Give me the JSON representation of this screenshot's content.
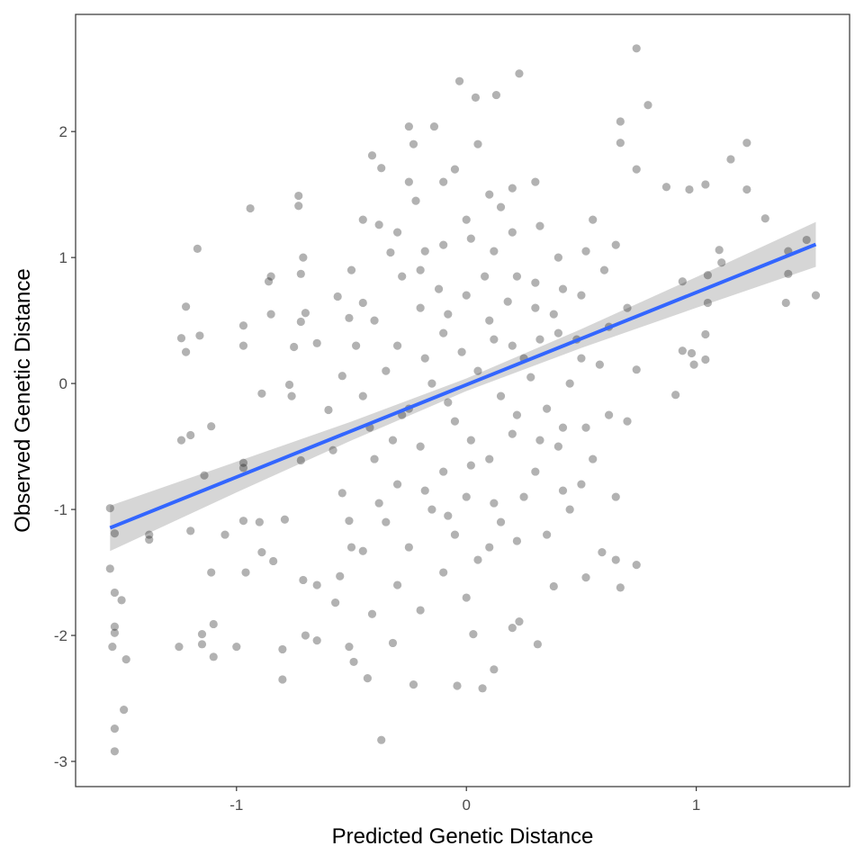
{
  "chart_data": {
    "type": "scatter",
    "title": "",
    "xlabel": "Predicted Genetic Distance",
    "ylabel": "Observed Genetic Distance",
    "xlim": [
      -1.7,
      1.667
    ],
    "ylim": [
      -3.2,
      2.93
    ],
    "x_ticks": [
      -1,
      0,
      1
    ],
    "y_ticks": [
      -3,
      -2,
      -1,
      0,
      1,
      2
    ],
    "x_tick_labels": [
      "-1",
      "0",
      "1"
    ],
    "y_tick_labels": [
      "-3",
      "-2",
      "-1",
      "0",
      "1",
      "2"
    ],
    "grid": false,
    "theme": "bw panel border, no gridlines",
    "point_color": "#000000",
    "point_opacity": 0.3,
    "points": [
      [
        -1.55,
        -0.99
      ],
      [
        -1.53,
        -1.19
      ],
      [
        -1.55,
        -1.47
      ],
      [
        -1.53,
        -1.66
      ],
      [
        -1.5,
        -1.72
      ],
      [
        -1.53,
        -1.93
      ],
      [
        -1.53,
        -1.98
      ],
      [
        -1.54,
        -2.09
      ],
      [
        -1.48,
        -2.19
      ],
      [
        -1.49,
        -2.59
      ],
      [
        -1.53,
        -2.74
      ],
      [
        -1.53,
        -2.92
      ],
      [
        -1.38,
        -1.2
      ],
      [
        -1.38,
        -1.24
      ],
      [
        -1.25,
        -2.09
      ],
      [
        -1.24,
        -0.45
      ],
      [
        -1.2,
        -0.41
      ],
      [
        -1.24,
        0.36
      ],
      [
        -1.22,
        0.25
      ],
      [
        -1.22,
        0.61
      ],
      [
        -1.17,
        1.07
      ],
      [
        -1.16,
        0.38
      ],
      [
        -1.15,
        -1.99
      ],
      [
        -1.15,
        -2.07
      ],
      [
        -1.14,
        -0.73
      ],
      [
        -1.11,
        -0.34
      ],
      [
        -1.11,
        -1.5
      ],
      [
        -1.1,
        -1.91
      ],
      [
        -1.1,
        -2.17
      ],
      [
        -1.2,
        -1.17
      ],
      [
        -1.05,
        -1.2
      ],
      [
        -1.0,
        -2.09
      ],
      [
        -0.97,
        0.46
      ],
      [
        -0.97,
        0.3
      ],
      [
        -0.94,
        1.39
      ],
      [
        -0.97,
        -0.63
      ],
      [
        -0.97,
        -0.67
      ],
      [
        -0.96,
        -1.5
      ],
      [
        -0.97,
        -1.09
      ],
      [
        -0.89,
        -0.08
      ],
      [
        -0.86,
        0.81
      ],
      [
        -0.85,
        0.85
      ],
      [
        -0.85,
        0.55
      ],
      [
        -0.9,
        -1.1
      ],
      [
        -0.89,
        -1.34
      ],
      [
        -0.84,
        -1.41
      ],
      [
        -0.8,
        -2.11
      ],
      [
        -0.8,
        -2.35
      ],
      [
        -0.79,
        -1.08
      ],
      [
        -0.73,
        1.49
      ],
      [
        -0.73,
        1.41
      ],
      [
        -0.71,
        1.0
      ],
      [
        -0.72,
        0.87
      ],
      [
        -0.7,
        0.56
      ],
      [
        -0.72,
        0.49
      ],
      [
        -0.75,
        0.29
      ],
      [
        -0.65,
        0.32
      ],
      [
        -0.77,
        -0.01
      ],
      [
        -0.76,
        -0.1
      ],
      [
        -0.72,
        -0.61
      ],
      [
        -0.7,
        -2.0
      ],
      [
        -0.65,
        -2.04
      ],
      [
        -0.71,
        -1.56
      ],
      [
        -0.65,
        -1.6
      ],
      [
        -0.57,
        -1.74
      ],
      [
        -0.51,
        -2.09
      ],
      [
        -0.49,
        -2.21
      ],
      [
        -0.43,
        -2.34
      ],
      [
        -0.37,
        -2.83
      ],
      [
        -0.41,
        1.81
      ],
      [
        -0.37,
        1.71
      ],
      [
        -0.38,
        1.26
      ],
      [
        -0.33,
        1.04
      ],
      [
        -0.45,
        0.64
      ],
      [
        -0.51,
        0.52
      ],
      [
        -0.56,
        0.69
      ],
      [
        -0.54,
        0.06
      ],
      [
        -0.6,
        -0.21
      ],
      [
        -0.58,
        -0.53
      ],
      [
        -0.54,
        -0.87
      ],
      [
        -0.51,
        -1.09
      ],
      [
        -0.55,
        -1.53
      ],
      [
        -0.45,
        -1.33
      ],
      [
        -0.41,
        -1.83
      ],
      [
        -0.32,
        -2.06
      ],
      [
        -0.25,
        2.04
      ],
      [
        -0.23,
        1.9
      ],
      [
        -0.14,
        2.04
      ],
      [
        -0.03,
        2.4
      ],
      [
        0.04,
        2.27
      ],
      [
        0.13,
        2.29
      ],
      [
        0.23,
        2.46
      ],
      [
        0.74,
        2.66
      ],
      [
        0.79,
        2.21
      ],
      [
        0.67,
        2.08
      ],
      [
        0.67,
        1.91
      ],
      [
        0.74,
        1.7
      ],
      [
        0.87,
        1.56
      ],
      [
        0.97,
        1.54
      ],
      [
        1.04,
        1.58
      ],
      [
        1.22,
        1.91
      ],
      [
        1.15,
        1.78
      ],
      [
        1.22,
        1.54
      ],
      [
        1.3,
        1.31
      ],
      [
        1.4,
        1.05
      ],
      [
        1.4,
        0.87
      ],
      [
        1.48,
        1.14
      ],
      [
        1.52,
        0.7
      ],
      [
        1.39,
        0.64
      ],
      [
        1.1,
        1.06
      ],
      [
        1.11,
        0.96
      ],
      [
        1.05,
        0.86
      ],
      [
        1.05,
        0.64
      ],
      [
        1.04,
        0.39
      ],
      [
        1.04,
        0.19
      ],
      [
        0.99,
        0.15
      ],
      [
        0.98,
        0.24
      ],
      [
        0.94,
        0.26
      ],
      [
        0.94,
        0.81
      ],
      [
        0.91,
        -0.09
      ],
      [
        0.74,
        0.11
      ],
      [
        0.74,
        -1.44
      ],
      [
        0.67,
        -1.62
      ],
      [
        0.65,
        -1.4
      ],
      [
        0.59,
        -1.34
      ],
      [
        0.52,
        -1.54
      ],
      [
        0.38,
        -1.61
      ],
      [
        0.31,
        -2.07
      ],
      [
        0.23,
        -1.89
      ],
      [
        0.12,
        -2.27
      ],
      [
        0.07,
        -2.42
      ],
      [
        -0.04,
        -2.4
      ],
      [
        -0.23,
        -2.39
      ],
      [
        0.03,
        -1.99
      ],
      [
        0.2,
        -1.94
      ],
      [
        -0.3,
        1.2
      ],
      [
        -0.2,
        0.9
      ],
      [
        -0.1,
        1.1
      ],
      [
        0,
        1.3
      ],
      [
        0.1,
        1.5
      ],
      [
        0.2,
        1.2
      ],
      [
        0.3,
        0.8
      ],
      [
        0.4,
        1.0
      ],
      [
        0.5,
        0.7
      ],
      [
        0.6,
        0.9
      ],
      [
        -0.4,
        0.5
      ],
      [
        -0.3,
        0.3
      ],
      [
        -0.2,
        0.6
      ],
      [
        -0.1,
        0.4
      ],
      [
        0,
        0.7
      ],
      [
        0.1,
        0.5
      ],
      [
        0.2,
        0.3
      ],
      [
        0.3,
        0.6
      ],
      [
        0.4,
        0.4
      ],
      [
        0.5,
        0.2
      ],
      [
        -0.45,
        -0.1
      ],
      [
        -0.35,
        0.1
      ],
      [
        -0.25,
        -0.2
      ],
      [
        -0.15,
        0.0
      ],
      [
        -0.05,
        -0.3
      ],
      [
        0.05,
        0.1
      ],
      [
        0.15,
        -0.1
      ],
      [
        0.25,
        0.2
      ],
      [
        0.35,
        -0.2
      ],
      [
        0.45,
        0.0
      ],
      [
        -0.4,
        -0.6
      ],
      [
        -0.3,
        -0.8
      ],
      [
        -0.2,
        -0.5
      ],
      [
        -0.1,
        -0.7
      ],
      [
        0,
        -0.9
      ],
      [
        0.1,
        -0.6
      ],
      [
        0.2,
        -0.4
      ],
      [
        0.3,
        -0.7
      ],
      [
        0.4,
        -0.5
      ],
      [
        0.5,
        -0.8
      ],
      [
        -0.35,
        -1.1
      ],
      [
        -0.25,
        -1.3
      ],
      [
        -0.15,
        -1.0
      ],
      [
        -0.05,
        -1.2
      ],
      [
        0.05,
        -1.4
      ],
      [
        0.15,
        -1.1
      ],
      [
        0.25,
        -0.9
      ],
      [
        0.35,
        -1.2
      ],
      [
        0.45,
        -1.0
      ],
      [
        0.55,
        -0.6
      ],
      [
        -0.3,
        -1.6
      ],
      [
        -0.2,
        -1.8
      ],
      [
        -0.1,
        -1.5
      ],
      [
        0,
        -1.7
      ],
      [
        0.1,
        -1.3
      ],
      [
        -0.25,
        1.6
      ],
      [
        -0.05,
        1.7
      ],
      [
        0.05,
        1.9
      ],
      [
        0.15,
        1.4
      ],
      [
        0.3,
        1.6
      ],
      [
        -0.22,
        1.45
      ],
      [
        -0.12,
        0.75
      ],
      [
        -0.02,
        0.25
      ],
      [
        0.08,
        0.85
      ],
      [
        0.18,
        0.65
      ],
      [
        0.28,
        0.05
      ],
      [
        0.38,
        0.55
      ],
      [
        0.48,
        0.35
      ],
      [
        0.58,
        0.15
      ],
      [
        0.62,
        -0.25
      ],
      [
        -0.48,
        0.3
      ],
      [
        -0.42,
        -0.35
      ],
      [
        -0.32,
        -0.45
      ],
      [
        -0.18,
        0.2
      ],
      [
        -0.08,
        -0.15
      ],
      [
        0.02,
        -0.45
      ],
      [
        0.12,
        0.35
      ],
      [
        0.22,
        -0.25
      ],
      [
        0.32,
        0.35
      ],
      [
        0.42,
        -0.35
      ],
      [
        -0.28,
        0.85
      ],
      [
        -0.18,
        1.05
      ],
      [
        -0.08,
        0.55
      ],
      [
        0.02,
        1.15
      ],
      [
        0.12,
        1.05
      ],
      [
        0.22,
        0.85
      ],
      [
        0.32,
        1.25
      ],
      [
        0.42,
        0.75
      ],
      [
        0.52,
        1.05
      ],
      [
        0.62,
        0.45
      ],
      [
        -0.38,
        -0.95
      ],
      [
        -0.28,
        -0.25
      ],
      [
        -0.18,
        -0.85
      ],
      [
        -0.08,
        -1.05
      ],
      [
        0.02,
        -0.65
      ],
      [
        0.12,
        -0.95
      ],
      [
        0.22,
        -1.25
      ],
      [
        0.32,
        -0.45
      ],
      [
        0.42,
        -0.85
      ],
      [
        0.52,
        -0.35
      ],
      [
        -0.5,
        0.9
      ],
      [
        -0.45,
        1.3
      ],
      [
        -0.1,
        1.6
      ],
      [
        0.2,
        1.55
      ],
      [
        0.55,
        1.3
      ],
      [
        0.65,
        1.1
      ],
      [
        0.7,
        0.6
      ],
      [
        0.7,
        -0.3
      ],
      [
        0.65,
        -0.9
      ],
      [
        -0.5,
        -1.3
      ]
    ],
    "fit_line": {
      "color": "#3366FF",
      "x": [
        -1.55,
        1.52
      ],
      "y": [
        -1.146,
        1.104
      ]
    },
    "confidence_band": {
      "color": "#999999",
      "opacity": 0.4,
      "x": [
        -1.55,
        -1.0,
        -0.5,
        0,
        0.5,
        1.0,
        1.52
      ],
      "lower": [
        -1.33,
        -0.865,
        -0.452,
        -0.06,
        0.282,
        0.601,
        0.926
      ],
      "upper": [
        -0.97,
        -0.621,
        -0.302,
        0.04,
        0.432,
        0.845,
        1.282
      ]
    }
  }
}
